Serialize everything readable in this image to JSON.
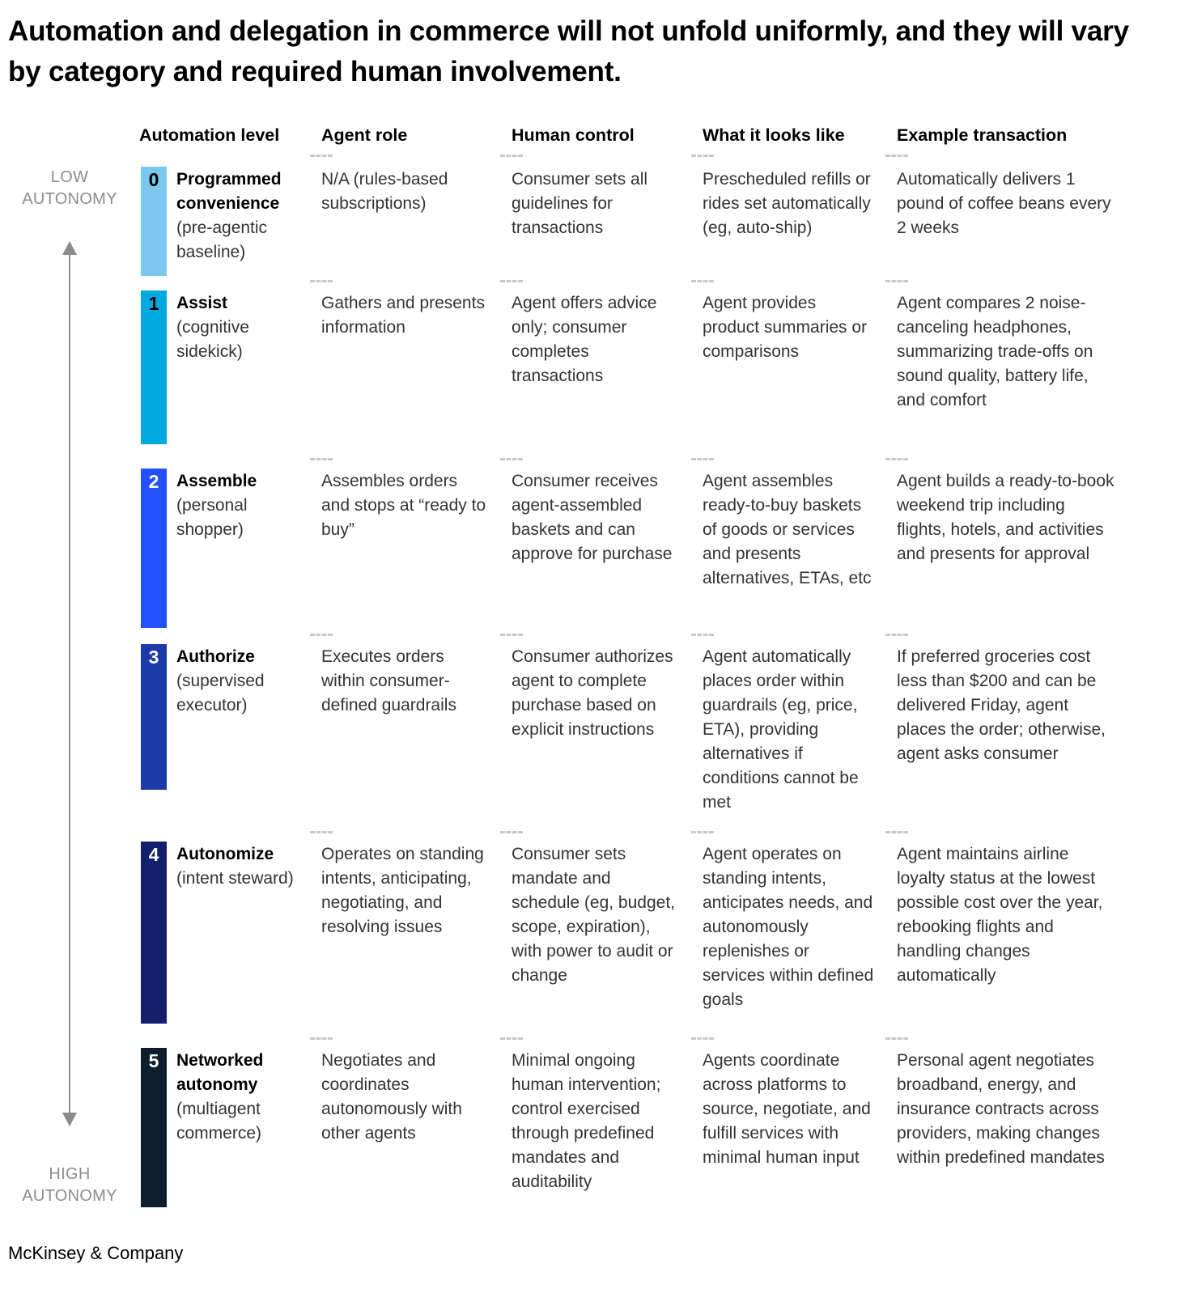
{
  "axis": {
    "low_label": "LOW AUTONOMY",
    "high_label": "HIGH AUTONOMY"
  },
  "footer": {
    "brand": "McKinsey & Company"
  },
  "chart_data": {
    "type": "table",
    "title": "Automation and delegation in commerce will not unfold uniformly, and they will vary by category and required human involvement.",
    "columns": [
      "Automation level",
      "Agent role",
      "Human control",
      "What it looks like",
      "Example transaction"
    ],
    "legend_position": "none",
    "autonomy_scale": {
      "low_end": "LOW AUTONOMY",
      "high_end": "HIGH AUTONOMY",
      "direction": "top-to-bottom"
    },
    "rows": [
      {
        "level": "0",
        "name": "Programmed convenience",
        "subtitle": "(pre-agentic baseline)",
        "color": "#7CC7EF",
        "level_text_color": "#000000",
        "agent_role": "N/A (rules-based subscriptions)",
        "human_control": "Consumer sets all guidelines for transactions",
        "what_it_looks_like": "Prescheduled refills or rides set automatically (eg, auto-ship)",
        "example": "Automatically delivers 1 pound of coffee beans every 2 weeks"
      },
      {
        "level": "1",
        "name": "Assist",
        "subtitle": "(cognitive sidekick)",
        "color": "#00A9E0",
        "level_text_color": "#000000",
        "agent_role": "Gathers and presents information",
        "human_control": "Agent offers advice only; consumer completes transactions",
        "what_it_looks_like": "Agent provides product summaries or comparisons",
        "example": "Agent compares 2 noise-canceling headphones, summarizing trade-offs on sound quality, battery life, and comfort"
      },
      {
        "level": "2",
        "name": "Assemble",
        "subtitle": "(personal shopper)",
        "color": "#2251FF",
        "level_text_color": "#FFFFFF",
        "agent_role": "Assembles orders and stops at “ready to buy”",
        "human_control": "Consumer receives agent-assembled baskets and can approve for purchase",
        "what_it_looks_like": "Agent assembles ready-to-buy baskets of goods or services and presents alternatives, ETAs, etc",
        "example": "Agent builds a ready-to-book weekend trip including flights, hotels, and activities and presents for approval"
      },
      {
        "level": "3",
        "name": "Authorize",
        "subtitle": "(supervised executor)",
        "color": "#1C3AA8",
        "level_text_color": "#FFFFFF",
        "agent_role": "Executes orders within consumer-defined guardrails",
        "human_control": "Consumer authorizes agent to complete purchase based on explicit instructions",
        "what_it_looks_like": "Agent automatically places order within guardrails (eg, price, ETA), providing alternatives if conditions cannot be met",
        "example": "If preferred groceries cost less than $200 and can be delivered Friday, agent places the order; otherwise, agent asks consumer"
      },
      {
        "level": "4",
        "name": "Autonomize",
        "subtitle": "(intent steward)",
        "color": "#12206E",
        "level_text_color": "#FFFFFF",
        "agent_role": "Operates on standing intents, anticipating, negotiating, and resolving issues",
        "human_control": "Consumer sets mandate and schedule (eg, budget, scope, expiration), with power to audit or change",
        "what_it_looks_like": "Agent operates on standing intents, anticipates needs, and autonomously replenishes or services within defined goals",
        "example": "Agent maintains airline loyalty status at the lowest possible cost over the year, rebooking flights and handling changes automatically"
      },
      {
        "level": "5",
        "name": "Networked autonomy",
        "subtitle": "(multiagent commerce)",
        "color": "#0D1F2D",
        "level_text_color": "#FFFFFF",
        "agent_role": "Negotiates and coordinates autonomously with other agents",
        "human_control": "Minimal ongoing human intervention; control exercised through predefined mandates and auditability",
        "what_it_looks_like": "Agents coordinate across platforms to source, negotiate, and fulfill services with minimal human input",
        "example": "Personal agent negotiates broadband, energy, and insurance contracts across providers, making changes within predefined mandates"
      }
    ]
  }
}
